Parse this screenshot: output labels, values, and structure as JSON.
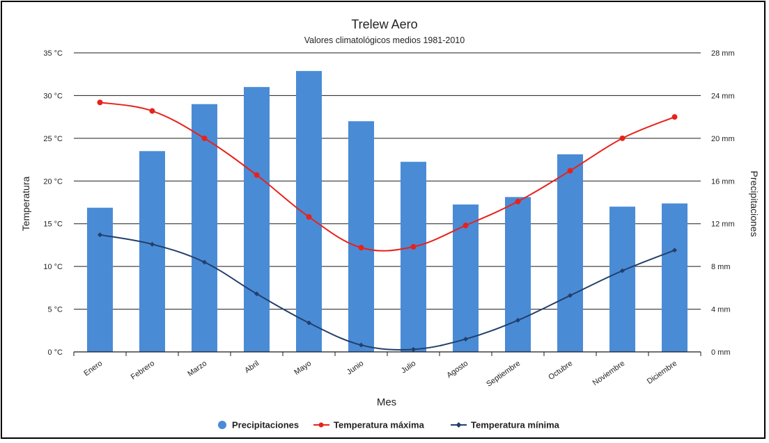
{
  "chart_data": {
    "type": "bar",
    "title": "Trelew Aero",
    "subtitle": "Valores climatológicos medios 1981-2010",
    "xlabel": "Mes",
    "ylabel_left": "Temperatura",
    "ylabel_right": "Precipitaciones",
    "categories": [
      "Enero",
      "Febrero",
      "Marzo",
      "Abril",
      "Mayo",
      "Junio",
      "Julio",
      "Agosto",
      "Septiembre",
      "Octubre",
      "Noviembre",
      "Diciembre"
    ],
    "y_left": {
      "min": 0,
      "max": 35,
      "ticks": [
        0,
        5,
        10,
        15,
        20,
        25,
        30,
        35
      ],
      "tick_labels": [
        "0 °C",
        "5 °C",
        "10 °C",
        "15 °C",
        "20 °C",
        "25 °C",
        "30 °C",
        "35 °C"
      ]
    },
    "y_right": {
      "min": 0,
      "max": 28,
      "ticks": [
        0,
        4,
        8,
        12,
        16,
        20,
        24,
        28
      ],
      "tick_labels": [
        "0 mm",
        "4 mm",
        "8 mm",
        "12 mm",
        "16 mm",
        "20 mm",
        "24 mm",
        "28 mm"
      ]
    },
    "grid": true,
    "legend_position": "bottom",
    "series": [
      {
        "name": "Precipitaciones",
        "type": "bar",
        "axis": "right",
        "color": "#4a8bd6",
        "values": [
          13.5,
          18.8,
          23.2,
          24.8,
          26.3,
          21.6,
          17.8,
          13.8,
          14.5,
          18.5,
          13.6,
          13.9
        ]
      },
      {
        "name": "Temperatura máxima",
        "type": "line",
        "axis": "left",
        "color": "#e8221b",
        "values": [
          29.2,
          28.2,
          25.0,
          20.7,
          15.8,
          12.2,
          12.3,
          14.8,
          17.6,
          21.2,
          25.0,
          27.5
        ]
      },
      {
        "name": "Temperatura mínima",
        "type": "line",
        "axis": "left",
        "color": "#223f6b",
        "values": [
          13.7,
          12.6,
          10.5,
          6.8,
          3.4,
          0.8,
          0.3,
          1.5,
          3.7,
          6.6,
          9.5,
          11.9
        ]
      }
    ]
  }
}
